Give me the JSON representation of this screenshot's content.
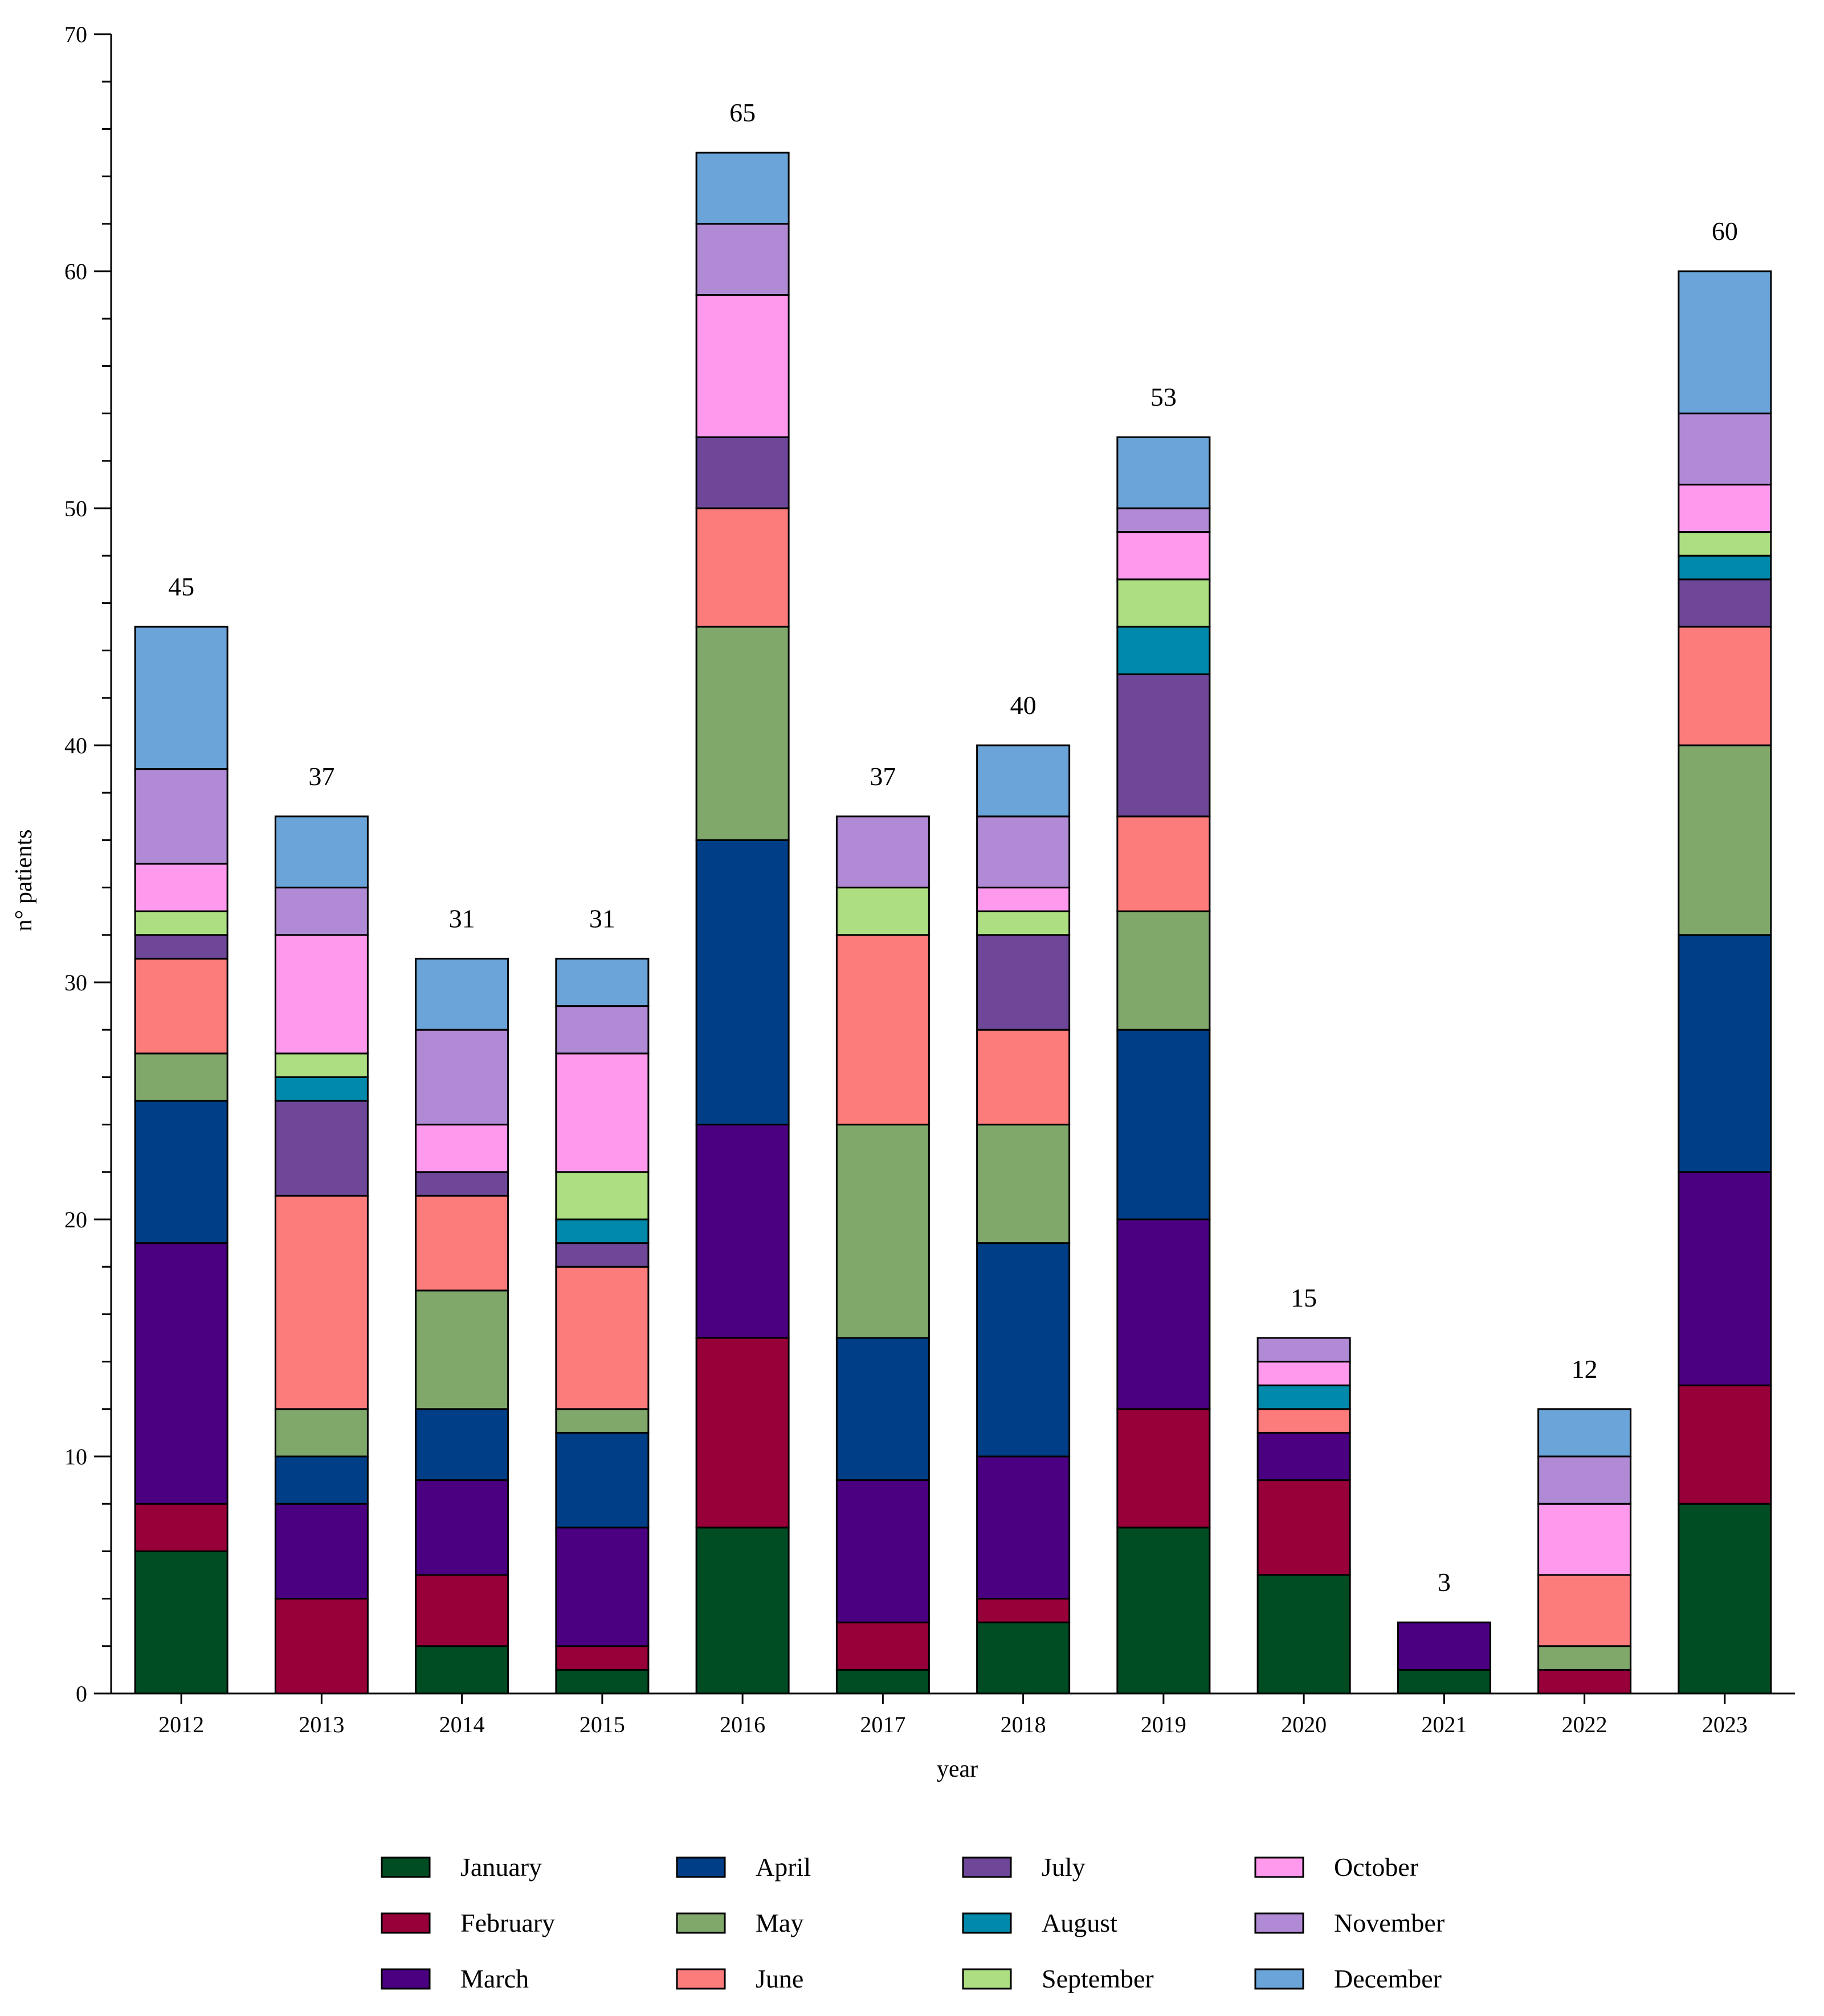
{
  "chart_data": {
    "type": "bar",
    "stacked": true,
    "title": "",
    "xlabel": "year",
    "ylabel": "n° patients",
    "ylim": [
      0,
      70
    ],
    "yticks": [
      0,
      10,
      20,
      30,
      40,
      50,
      60,
      70
    ],
    "categories": [
      "2012",
      "2013",
      "2014",
      "2015",
      "2016",
      "2017",
      "2018",
      "2019",
      "2020",
      "2021",
      "2022",
      "2023"
    ],
    "totals": [
      "45",
      "37",
      "31",
      "31",
      "65",
      "37",
      "40",
      "53",
      "15",
      "3",
      "12",
      "60"
    ],
    "legend_position": "bottom",
    "series": [
      {
        "name": "January",
        "color": "#004d23",
        "values": [
          6,
          0,
          2,
          1,
          7,
          1,
          3,
          7,
          5,
          1,
          0,
          8
        ]
      },
      {
        "name": "February",
        "color": "#98003a",
        "values": [
          2,
          4,
          3,
          1,
          8,
          2,
          1,
          5,
          4,
          0,
          1,
          5
        ]
      },
      {
        "name": "March",
        "color": "#4b0082",
        "values": [
          11,
          4,
          4,
          5,
          9,
          6,
          6,
          8,
          2,
          2,
          0,
          9
        ]
      },
      {
        "name": "April",
        "color": "#003f87",
        "values": [
          6,
          2,
          3,
          4,
          12,
          6,
          9,
          8,
          0,
          0,
          0,
          10
        ]
      },
      {
        "name": "May",
        "color": "#80a86a",
        "values": [
          2,
          2,
          5,
          1,
          9,
          9,
          5,
          5,
          0,
          0,
          1,
          8
        ]
      },
      {
        "name": "June",
        "color": "#fc7b7b",
        "values": [
          4,
          9,
          4,
          6,
          5,
          8,
          4,
          4,
          1,
          0,
          3,
          5
        ]
      },
      {
        "name": "July",
        "color": "#6e4799",
        "values": [
          1,
          4,
          1,
          1,
          3,
          0,
          4,
          6,
          0,
          0,
          0,
          2
        ]
      },
      {
        "name": "August",
        "color": "#0089aa",
        "values": [
          0,
          1,
          0,
          1,
          0,
          0,
          0,
          2,
          1,
          0,
          0,
          1
        ]
      },
      {
        "name": "September",
        "color": "#addf82",
        "values": [
          1,
          1,
          0,
          2,
          0,
          2,
          1,
          2,
          0,
          0,
          0,
          1
        ]
      },
      {
        "name": "October",
        "color": "#ff99ee",
        "values": [
          2,
          5,
          2,
          5,
          6,
          0,
          1,
          2,
          1,
          0,
          3,
          2
        ]
      },
      {
        "name": "November",
        "color": "#b18ad6",
        "values": [
          4,
          2,
          4,
          2,
          3,
          3,
          3,
          1,
          1,
          0,
          2,
          3
        ]
      },
      {
        "name": "December",
        "color": "#6aa4d8",
        "values": [
          6,
          3,
          3,
          2,
          3,
          0,
          3,
          3,
          0,
          0,
          2,
          6
        ]
      }
    ]
  }
}
